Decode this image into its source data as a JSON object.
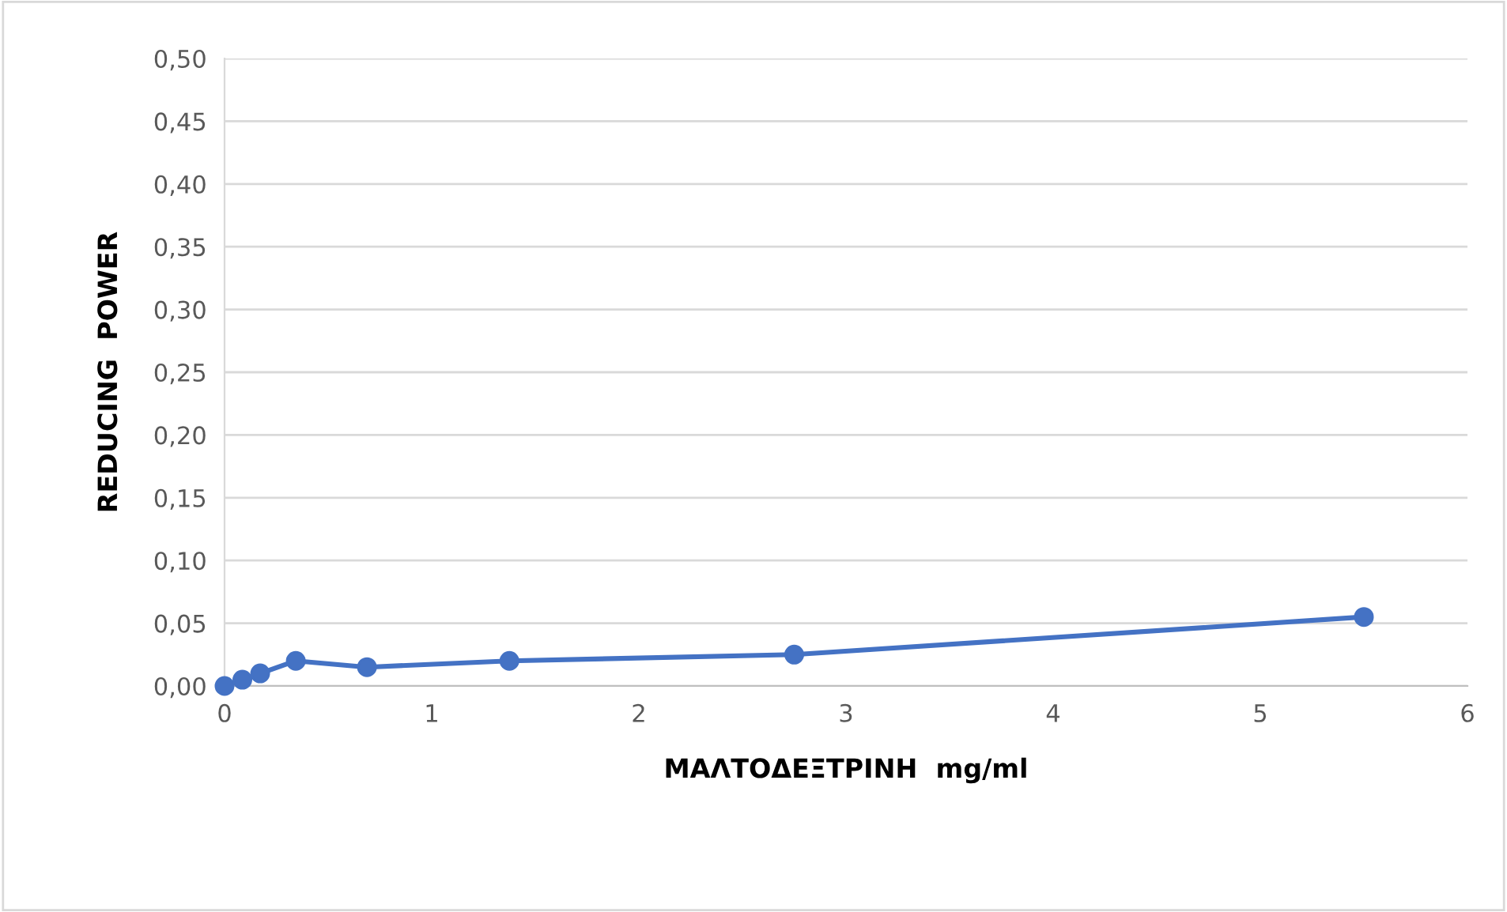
{
  "chart_data": {
    "type": "line",
    "xlabel": "ΜΑΛΤΟΔΕΞΤΡΙΝΗ  mg/ml",
    "ylabel": "REDUCING  POWER",
    "x": [
      0,
      0.086,
      0.172,
      0.344,
      0.6875,
      1.375,
      2.75,
      5.5
    ],
    "series": [
      {
        "color": "#4472c4",
        "values": [
          0,
          0.005,
          0.01,
          0.02,
          0.015,
          0.02,
          0.025,
          0.055
        ]
      }
    ],
    "xlim": [
      0,
      6
    ],
    "xticks": [
      0,
      1,
      2,
      3,
      4,
      5,
      6
    ],
    "ylim": [
      0,
      0.5
    ],
    "yticks": [
      {
        "value": 0,
        "label": "0,00"
      },
      {
        "value": 0.05,
        "label": "0,05"
      },
      {
        "value": 0.1,
        "label": "0,10"
      },
      {
        "value": 0.15,
        "label": "0,15"
      },
      {
        "value": 0.2,
        "label": "0,20"
      },
      {
        "value": 0.25,
        "label": "0,25"
      },
      {
        "value": 0.3,
        "label": "0,30"
      },
      {
        "value": 0.35,
        "label": "0,35"
      },
      {
        "value": 0.4,
        "label": "0,40"
      },
      {
        "value": 0.45,
        "label": "0,45"
      },
      {
        "value": 0.5,
        "label": "0,50"
      }
    ],
    "grid": "y",
    "marker": "circle",
    "line_style": "solid"
  }
}
